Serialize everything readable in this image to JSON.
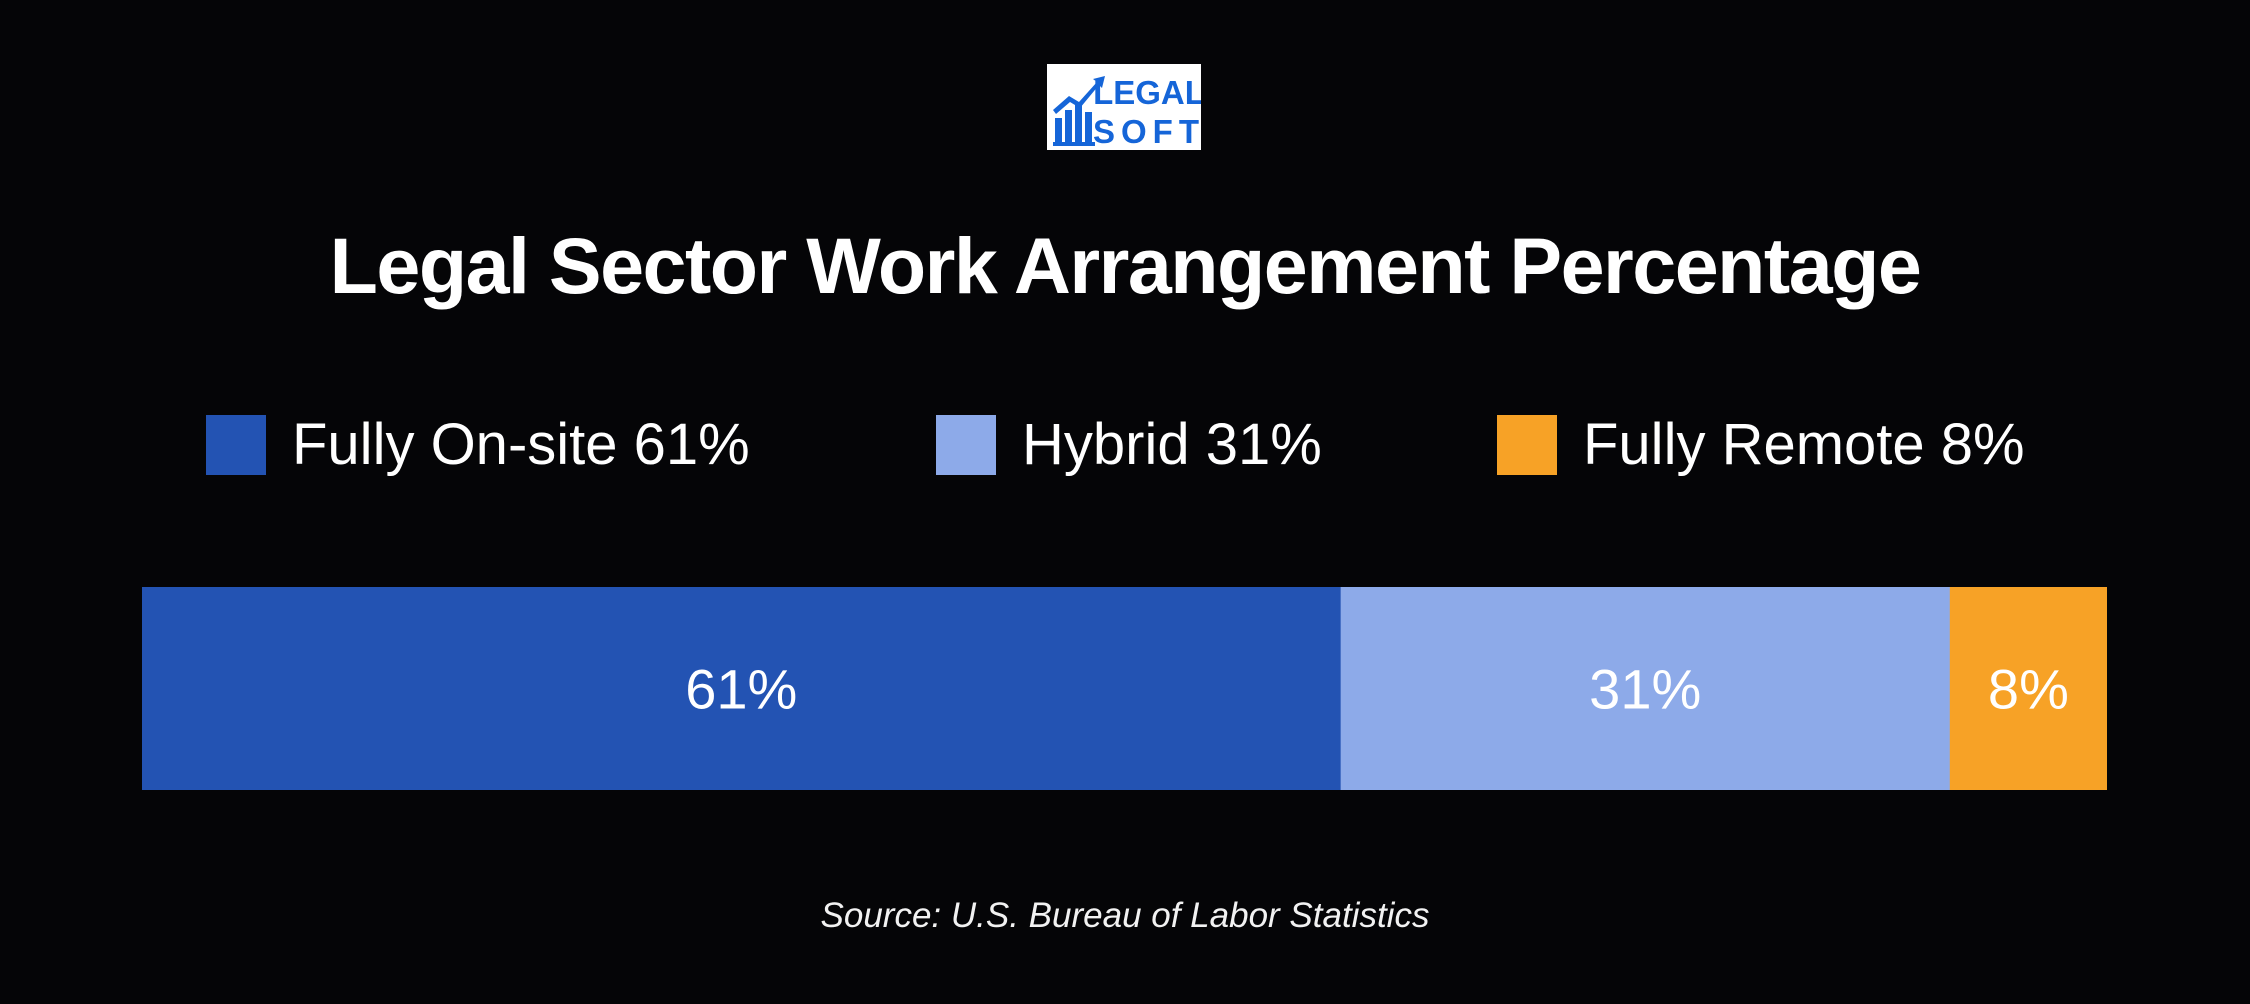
{
  "logo": {
    "line1": "LEGAL",
    "line2": "SOFT",
    "color": "#1565d8"
  },
  "chart_data": {
    "type": "bar",
    "orientation": "horizontal-stacked-100",
    "title": "Legal Sector Work Arrangement Percentage",
    "legend_position": "top",
    "categories": [
      "Fully On-site",
      "Hybrid",
      "Fully Remote"
    ],
    "values": [
      61,
      31,
      8
    ],
    "value_labels": [
      "61%",
      "31%",
      "8%"
    ],
    "colors": [
      "#2353b3",
      "#8daae9",
      "#f7a226"
    ],
    "legend": [
      {
        "label": "Fully On-site 61%",
        "color": "#2353b3"
      },
      {
        "label": "Hybrid 31%",
        "color": "#8daae9"
      },
      {
        "label": "Fully Remote 8%",
        "color": "#f7a226"
      }
    ],
    "source": "Source: U.S. Bureau of Labor Statistics"
  }
}
